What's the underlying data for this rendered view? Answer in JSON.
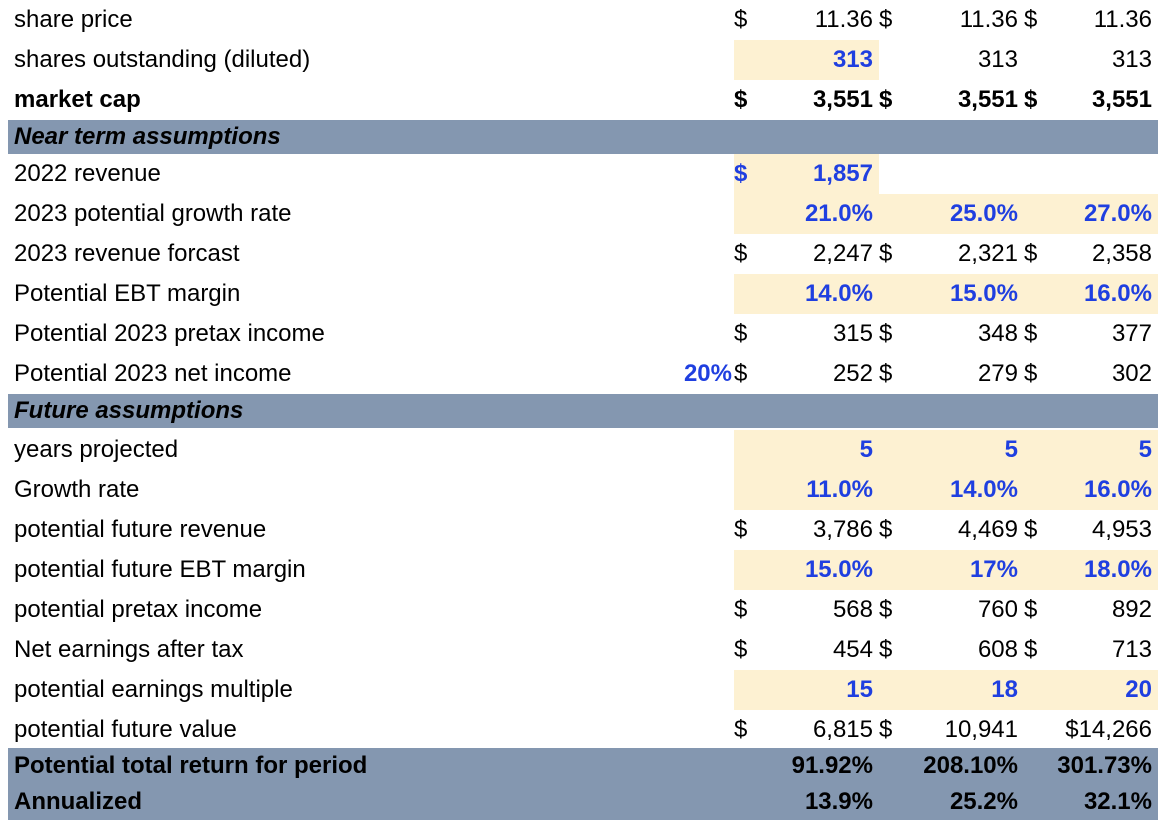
{
  "rows": [
    {
      "label": "share price",
      "dollar": true,
      "values": [
        "11.36",
        "11.36",
        "11.36"
      ]
    },
    {
      "label": "shares outstanding (diluted)",
      "values": [
        "313",
        "313",
        "313"
      ]
    },
    {
      "label": "market cap",
      "dollar": true,
      "values": [
        "3,551",
        "3,551",
        "3,551"
      ]
    },
    {
      "section": "Near term assumptions"
    },
    {
      "label": "2022 revenue",
      "values": [
        "1,857"
      ]
    },
    {
      "label": "2023 potential growth rate",
      "values": [
        "21.0%",
        "25.0%",
        "27.0%"
      ]
    },
    {
      "label": "2023 revenue forcast",
      "dollar": true,
      "values": [
        "2,247",
        "2,321",
        "2,358"
      ]
    },
    {
      "label": "Potential EBT margin",
      "values": [
        "14.0%",
        "15.0%",
        "16.0%"
      ]
    },
    {
      "label": "Potential 2023 pretax income",
      "dollar": true,
      "values": [
        "315",
        "348",
        "377"
      ]
    },
    {
      "label": "Potential 2023 net income",
      "tax_rate": "20%",
      "dollar": true,
      "values": [
        "252",
        "279",
        "302"
      ]
    },
    {
      "section": "Future assumptions"
    },
    {
      "label": "years projected",
      "values": [
        "5",
        "5",
        "5"
      ]
    },
    {
      "label": "Growth rate",
      "values": [
        "11.0%",
        "14.0%",
        "16.0%"
      ]
    },
    {
      "label": "potential future revenue",
      "dollar": true,
      "values": [
        "3,786",
        "4,469",
        "4,953"
      ]
    },
    {
      "label": "potential future EBT margin",
      "values": [
        "15.0%",
        "17%",
        "18.0%"
      ]
    },
    {
      "label": "potential pretax income",
      "dollar": true,
      "values": [
        "568",
        "760",
        "892"
      ]
    },
    {
      "label": "Net earnings after tax",
      "dollar": true,
      "values": [
        "454",
        "608",
        "713"
      ]
    },
    {
      "label": "potential earnings multiple",
      "values": [
        "15",
        "18",
        "20"
      ]
    },
    {
      "label": "potential future value",
      "dollar": true,
      "values": [
        "6,815",
        "10,941",
        "$14,266"
      ]
    },
    {
      "label": "Potential total return for period",
      "values": [
        "91.92%",
        "208.10%",
        "301.73%"
      ]
    },
    {
      "label": "Annualized",
      "values": [
        "13.9%",
        "25.2%",
        "32.1%"
      ]
    }
  ],
  "currency_symbol": "$",
  "colors": {
    "input_text": "#1f3fe0",
    "input_fill": "#fdf1d2",
    "section_band": "#8497b0"
  }
}
